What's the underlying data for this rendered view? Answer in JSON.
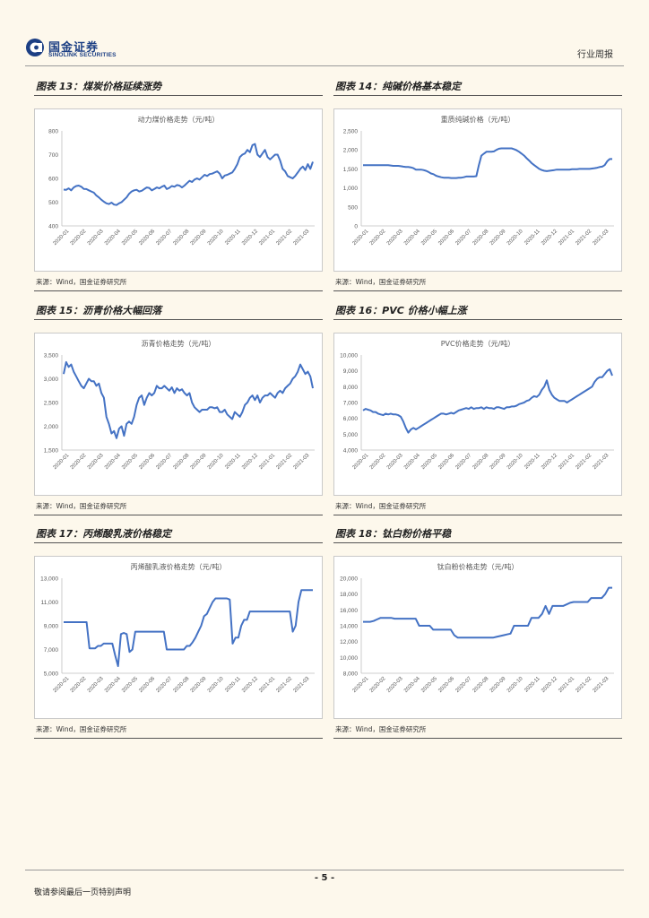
{
  "header": {
    "logo_cn": "国金证券",
    "logo_en": "SINOLINK SECURITIES",
    "report_type": "行业周报",
    "brand_color": "#1c3f84"
  },
  "line_color": "#4472c4",
  "panels": [
    {
      "title": "图表 13：煤炭价格延续涨势",
      "source": "来源：Wind，国金证券研究所",
      "chart_data": {
        "type": "line",
        "title": "动力煤价格走势（元/吨）",
        "yticks": [
          "400",
          "500",
          "600",
          "700",
          "800"
        ],
        "ylim": [
          400,
          800
        ],
        "xticks": [
          "2020-01",
          "2020-02",
          "2020-03",
          "2020-04",
          "2020-05",
          "2020-06",
          "2020-07",
          "2020-08",
          "2020-09",
          "2020-10",
          "2020-11",
          "2020-12",
          "2021-01",
          "2021-02",
          "2021-03"
        ],
        "values": [
          553,
          552,
          558,
          550,
          562,
          568,
          570,
          565,
          556,
          555,
          550,
          545,
          540,
          528,
          520,
          510,
          502,
          495,
          492,
          498,
          490,
          488,
          495,
          500,
          510,
          520,
          535,
          545,
          550,
          552,
          545,
          548,
          555,
          562,
          560,
          550,
          555,
          562,
          558,
          565,
          570,
          555,
          560,
          568,
          565,
          572,
          570,
          562,
          570,
          580,
          590,
          585,
          595,
          600,
          595,
          605,
          615,
          610,
          618,
          620,
          625,
          630,
          620,
          600,
          612,
          615,
          620,
          625,
          640,
          660,
          690,
          700,
          705,
          720,
          710,
          740,
          745,
          700,
          690,
          705,
          720,
          690,
          680,
          690,
          700,
          700,
          675,
          640,
          630,
          610,
          605,
          600,
          610,
          625,
          640,
          650,
          635,
          660,
          640,
          670
        ]
      }
    },
    {
      "title": "图表 14：纯碱价格基本稳定",
      "source": "来源：Wind，国金证券研究所",
      "chart_data": {
        "type": "line",
        "title": "重质纯碱价格（元/吨）",
        "yticks": [
          "0",
          "500",
          "1,000",
          "1,500",
          "2,000",
          "2,500"
        ],
        "ylim": [
          0,
          2500
        ],
        "xticks": [
          "2020-01",
          "2020-02",
          "2020-03",
          "2020-04",
          "2020-05",
          "2020-06",
          "2020-07",
          "2020-08",
          "2020-09",
          "2020-10",
          "2020-11",
          "2020-12",
          "2021-01",
          "2021-02",
          "2021-03"
        ],
        "values": [
          1600,
          1600,
          1600,
          1600,
          1600,
          1600,
          1600,
          1600,
          1600,
          1600,
          1600,
          1590,
          1580,
          1580,
          1580,
          1570,
          1560,
          1550,
          1550,
          1540,
          1520,
          1480,
          1480,
          1480,
          1470,
          1450,
          1420,
          1380,
          1360,
          1320,
          1300,
          1280,
          1270,
          1270,
          1270,
          1260,
          1260,
          1260,
          1270,
          1270,
          1280,
          1300,
          1300,
          1300,
          1300,
          1310,
          1600,
          1850,
          1900,
          1950,
          1950,
          1950,
          1960,
          2000,
          2030,
          2040,
          2040,
          2040,
          2040,
          2040,
          2020,
          1990,
          1950,
          1900,
          1850,
          1780,
          1720,
          1650,
          1600,
          1550,
          1500,
          1470,
          1450,
          1440,
          1450,
          1460,
          1470,
          1480,
          1480,
          1480,
          1480,
          1480,
          1480,
          1490,
          1490,
          1490,
          1500,
          1500,
          1500,
          1500,
          1500,
          1510,
          1520,
          1530,
          1550,
          1560,
          1600,
          1700,
          1760,
          1760
        ]
      }
    },
    {
      "title": "图表 15：沥青价格大幅回落",
      "source": "来源：Wind，国金证券研究所",
      "chart_data": {
        "type": "line",
        "title": "沥青价格走势（元/吨）",
        "yticks": [
          "1,500",
          "2,000",
          "2,500",
          "3,000",
          "3,500"
        ],
        "ylim": [
          1500,
          3500
        ],
        "xticks": [
          "2020-01",
          "2020-02",
          "2020-03",
          "2020-04",
          "2020-05",
          "2020-06",
          "2020-07",
          "2020-08",
          "2020-09",
          "2020-10",
          "2020-11",
          "2020-12",
          "2021-01",
          "2021-02",
          "2021-03"
        ],
        "values": [
          3100,
          3350,
          3250,
          3300,
          3150,
          3050,
          2950,
          2850,
          2800,
          2900,
          3000,
          2950,
          2950,
          2850,
          2900,
          2700,
          2600,
          2200,
          2050,
          1850,
          1900,
          1750,
          1950,
          2000,
          1800,
          2050,
          2100,
          2050,
          2200,
          2450,
          2600,
          2650,
          2450,
          2600,
          2700,
          2650,
          2700,
          2850,
          2800,
          2800,
          2850,
          2800,
          2750,
          2820,
          2700,
          2800,
          2750,
          2780,
          2700,
          2650,
          2700,
          2500,
          2400,
          2350,
          2300,
          2350,
          2350,
          2350,
          2400,
          2400,
          2380,
          2400,
          2300,
          2300,
          2350,
          2250,
          2200,
          2150,
          2300,
          2250,
          2200,
          2300,
          2450,
          2500,
          2600,
          2650,
          2550,
          2650,
          2500,
          2600,
          2650,
          2650,
          2700,
          2650,
          2600,
          2700,
          2750,
          2700,
          2800,
          2850,
          2900,
          3000,
          3050,
          3150,
          3300,
          3200,
          3100,
          3150,
          3050,
          2800
        ]
      }
    },
    {
      "title": "图表 16：PVC 价格小幅上涨",
      "source": "来源：Wind，国金证券研究所",
      "chart_data": {
        "type": "line",
        "title": "PVC价格走势（元/吨）",
        "yticks": [
          "4,000",
          "5,000",
          "6,000",
          "7,000",
          "8,000",
          "9,000",
          "10,000"
        ],
        "ylim": [
          4000,
          10000
        ],
        "xticks": [
          "2020-01",
          "2020-02",
          "2020-03",
          "2020-04",
          "2020-05",
          "2020-06",
          "2020-07",
          "2020-08",
          "2020-09",
          "2020-10",
          "2020-11",
          "2020-12",
          "2021-01",
          "2021-02",
          "2021-03"
        ],
        "values": [
          6500,
          6600,
          6550,
          6500,
          6400,
          6400,
          6300,
          6250,
          6200,
          6300,
          6250,
          6300,
          6250,
          6250,
          6200,
          6100,
          5800,
          5400,
          5100,
          5300,
          5400,
          5300,
          5400,
          5500,
          5600,
          5700,
          5800,
          5900,
          6000,
          6100,
          6200,
          6300,
          6300,
          6250,
          6300,
          6350,
          6300,
          6400,
          6500,
          6550,
          6600,
          6650,
          6600,
          6700,
          6600,
          6650,
          6650,
          6700,
          6600,
          6700,
          6650,
          6650,
          6600,
          6700,
          6700,
          6650,
          6600,
          6700,
          6700,
          6750,
          6750,
          6800,
          6900,
          6950,
          7000,
          7100,
          7150,
          7300,
          7400,
          7350,
          7500,
          7800,
          8000,
          8400,
          7800,
          7500,
          7300,
          7200,
          7100,
          7100,
          7100,
          7000,
          7100,
          7200,
          7300,
          7400,
          7500,
          7600,
          7700,
          7800,
          7900,
          8000,
          8300,
          8500,
          8600,
          8600,
          8800,
          9000,
          9100,
          8700
        ]
      }
    },
    {
      "title": "图表 17：丙烯酸乳液价格稳定",
      "source": "来源：Wind，国金证券研究所",
      "chart_data": {
        "type": "line",
        "title": "丙烯酸乳液价格走势（元/吨）",
        "yticks": [
          "5,000",
          "7,000",
          "9,000",
          "11,000",
          "13,000"
        ],
        "ylim": [
          5000,
          13000
        ],
        "xticks": [
          "2020-01",
          "2020-02",
          "2020-03",
          "2020-04",
          "2020-05",
          "2020-06",
          "2020-07",
          "2020-08",
          "2020-09",
          "2020-10",
          "2020-11",
          "2020-12",
          "2021-01",
          "2021-02",
          "2021-03"
        ],
        "values": [
          9300,
          9300,
          9300,
          9300,
          9300,
          9300,
          9300,
          9300,
          9300,
          7100,
          7100,
          7100,
          7300,
          7300,
          7500,
          7500,
          7500,
          7500,
          6500,
          5600,
          8300,
          8400,
          8300,
          6800,
          7000,
          8500,
          8500,
          8500,
          8500,
          8500,
          8500,
          8500,
          8500,
          8500,
          8500,
          8500,
          7000,
          7000,
          7000,
          7000,
          7000,
          7000,
          7000,
          7300,
          7300,
          7600,
          8000,
          8500,
          9000,
          9800,
          10000,
          10500,
          11000,
          11300,
          11300,
          11300,
          11300,
          11300,
          11200,
          7500,
          8000,
          8000,
          9000,
          9500,
          9500,
          10200,
          10200,
          10200,
          10200,
          10200,
          10200,
          10200,
          10200,
          10200,
          10200,
          10200,
          10200,
          10200,
          10200,
          10200,
          8500,
          9000,
          11000,
          12000,
          12000,
          12000,
          12000,
          12000
        ]
      }
    },
    {
      "title": "图表 18：钛白粉价格平稳",
      "source": "来源：Wind，国金证券研究所",
      "chart_data": {
        "type": "line",
        "title": "钛白粉价格走势（元/吨）",
        "yticks": [
          "8,000",
          "10,000",
          "12,000",
          "14,000",
          "16,000",
          "18,000",
          "20,000"
        ],
        "ylim": [
          8000,
          20000
        ],
        "xticks": [
          "2020-01",
          "2020-02",
          "2020-03",
          "2020-04",
          "2020-05",
          "2020-06",
          "2020-07",
          "2020-08",
          "2020-09",
          "2020-10",
          "2020-11",
          "2020-12",
          "2021-01",
          "2021-02",
          "2021-03"
        ],
        "values": [
          14500,
          14500,
          14500,
          14600,
          14800,
          15000,
          15000,
          15000,
          15000,
          14900,
          14900,
          14900,
          14900,
          14900,
          14900,
          14900,
          14000,
          14000,
          14000,
          14000,
          13500,
          13500,
          13500,
          13500,
          13500,
          13500,
          12800,
          12500,
          12500,
          12500,
          12500,
          12500,
          12500,
          12500,
          12500,
          12500,
          12500,
          12500,
          12600,
          12700,
          12800,
          12900,
          13000,
          14000,
          14000,
          14000,
          14000,
          14000,
          15000,
          15000,
          15000,
          15500,
          16500,
          15500,
          16500,
          16500,
          16500,
          16500,
          16700,
          16900,
          17000,
          17000,
          17000,
          17000,
          17000,
          17500,
          17500,
          17500,
          17500,
          18000,
          18800,
          18800
        ]
      }
    }
  ],
  "footer": {
    "page_number": "- 5 -",
    "disclaimer": "敬请参阅最后一页特别声明"
  }
}
